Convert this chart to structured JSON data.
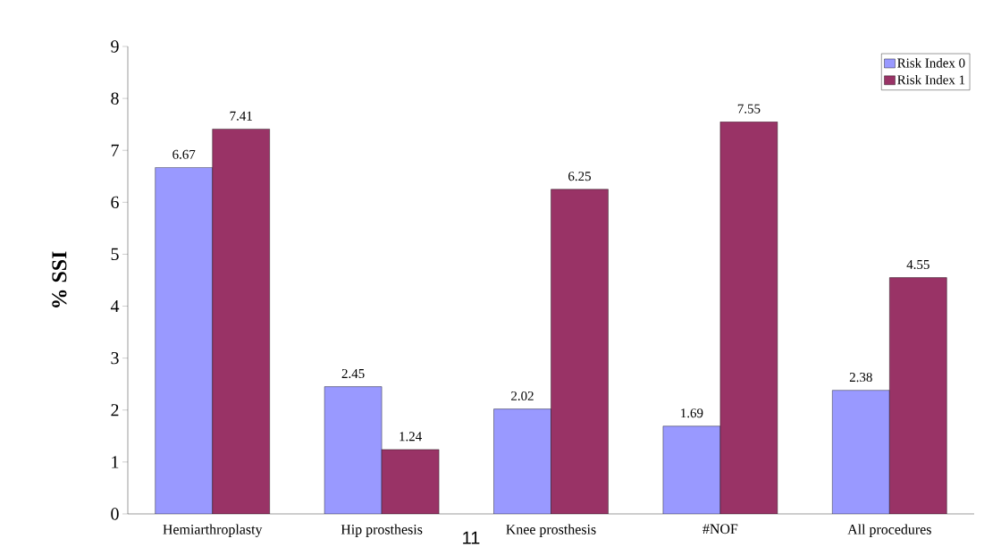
{
  "chart_data": {
    "type": "bar",
    "ylabel": "% SSI",
    "categories": [
      "Hemiarthroplasty",
      "Hip prosthesis",
      "Knee prosthesis",
      "#NOF",
      "All procedures"
    ],
    "series": [
      {
        "name": "Risk Index 0",
        "color": "#9999ff",
        "values": [
          6.67,
          2.45,
          2.02,
          1.69,
          2.38
        ]
      },
      {
        "name": "Risk Index 1",
        "color": "#993366",
        "values": [
          7.41,
          1.24,
          6.25,
          7.55,
          4.55
        ]
      }
    ],
    "ylim": [
      0,
      9
    ],
    "yticks": [
      0,
      1,
      2,
      3,
      4,
      5,
      6,
      7,
      8,
      9
    ],
    "data_labels": true,
    "legend": "top right",
    "grid": false,
    "annotations": [
      "11"
    ]
  }
}
